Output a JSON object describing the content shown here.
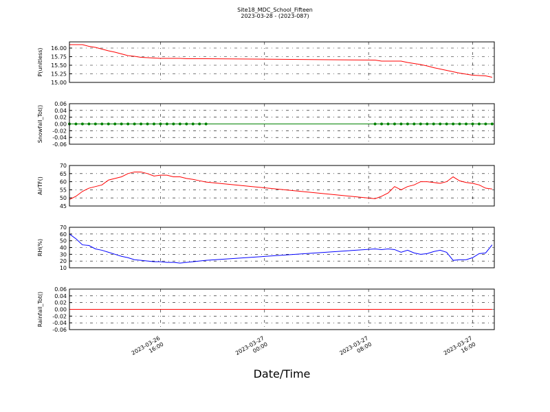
{
  "title": "Site18_MDC_School_Fifteen",
  "subtitle": "2023-03-28 - (2023-087)",
  "x_axis": {
    "label": "Date/Time",
    "lim": [
      "2023-03-26 09:00",
      "2023-03-27 17:40"
    ],
    "ticks": [
      {
        "value": "2023-03-26 16:00",
        "label": "2023-03-26\n16:00"
      },
      {
        "value": "2023-03-27 00:00",
        "label": "2023-03-27\n00:00"
      },
      {
        "value": "2023-03-27 08:00",
        "label": "2023-03-27\n08:00"
      },
      {
        "value": "2023-03-27 16:00",
        "label": "2023-03-27\n16:00"
      }
    ]
  },
  "chart_data": [
    {
      "type": "line",
      "y_label": "P(unitless)",
      "color": "#ff0000",
      "grid": true,
      "ylim": [
        15.0,
        16.18
      ],
      "yticks": [
        {
          "value": 15.0,
          "label": "15.00"
        },
        15.25,
        {
          "value": 15.5,
          "label": "15.50"
        },
        15.75,
        {
          "value": 16.0,
          "label": "16.00"
        }
      ],
      "x": [
        "2023-03-26 09:00",
        "2023-03-26 09:30",
        "2023-03-26 10:00",
        "2023-03-26 10:30",
        "2023-03-26 11:00",
        "2023-03-26 11:30",
        "2023-03-26 12:00",
        "2023-03-26 12:30",
        "2023-03-26 13:00",
        "2023-03-26 13:30",
        "2023-03-26 14:00",
        "2023-03-26 14:30",
        "2023-03-26 15:00",
        "2023-03-26 15:30",
        "2023-03-26 16:00",
        "2023-03-26 16:30",
        "2023-03-26 17:00",
        "2023-03-26 17:30",
        "2023-03-26 18:00",
        "2023-03-26 18:30",
        "2023-03-26 19:00",
        "2023-03-26 19:30",
        "2023-03-27 08:30",
        "2023-03-27 09:00",
        "2023-03-27 09:30",
        "2023-03-27 10:00",
        "2023-03-27 10:30",
        "2023-03-27 11:00",
        "2023-03-27 11:30",
        "2023-03-27 12:00",
        "2023-03-27 12:30",
        "2023-03-27 13:00",
        "2023-03-27 13:30",
        "2023-03-27 14:00",
        "2023-03-27 14:30",
        "2023-03-27 15:00",
        "2023-03-27 15:30",
        "2023-03-27 16:00",
        "2023-03-27 16:30",
        "2023-03-27 17:00",
        "2023-03-27 17:30"
      ],
      "values": [
        16.1,
        16.1,
        16.1,
        16.05,
        16.02,
        15.97,
        15.92,
        15.88,
        15.83,
        15.78,
        15.76,
        15.73,
        15.72,
        15.71,
        15.7,
        15.7,
        15.7,
        15.7,
        15.69,
        15.69,
        15.69,
        15.69,
        15.65,
        15.62,
        15.62,
        15.62,
        15.62,
        15.58,
        15.55,
        15.52,
        15.48,
        15.43,
        15.39,
        15.35,
        15.31,
        15.27,
        15.24,
        15.21,
        15.2,
        15.19,
        15.15
      ]
    },
    {
      "type": "line",
      "y_label": "Snowfall_Tot()",
      "color": "#008000",
      "markers": true,
      "grid": true,
      "ylim": [
        -0.06,
        0.06
      ],
      "yticks": [
        -0.06,
        -0.04,
        -0.02,
        {
          "value": 0,
          "label": "0.00"
        },
        0.02,
        0.04,
        0.06
      ],
      "x": [
        "2023-03-26 09:00",
        "2023-03-26 09:30",
        "2023-03-26 10:00",
        "2023-03-26 10:30",
        "2023-03-26 11:00",
        "2023-03-26 11:30",
        "2023-03-26 12:00",
        "2023-03-26 12:30",
        "2023-03-26 13:00",
        "2023-03-26 13:30",
        "2023-03-26 14:00",
        "2023-03-26 14:30",
        "2023-03-26 15:00",
        "2023-03-26 15:30",
        "2023-03-26 16:00",
        "2023-03-26 16:30",
        "2023-03-26 17:00",
        "2023-03-26 17:30",
        "2023-03-26 18:00",
        "2023-03-26 18:30",
        "2023-03-26 19:00",
        "2023-03-26 19:30",
        "2023-03-27 08:30",
        "2023-03-27 09:00",
        "2023-03-27 09:30",
        "2023-03-27 10:00",
        "2023-03-27 10:30",
        "2023-03-27 11:00",
        "2023-03-27 11:30",
        "2023-03-27 12:00",
        "2023-03-27 12:30",
        "2023-03-27 13:00",
        "2023-03-27 13:30",
        "2023-03-27 14:00",
        "2023-03-27 14:30",
        "2023-03-27 15:00",
        "2023-03-27 15:30",
        "2023-03-27 16:00",
        "2023-03-27 16:30",
        "2023-03-27 17:00",
        "2023-03-27 17:30"
      ],
      "values": [
        0,
        0,
        0,
        0,
        0,
        0,
        0,
        0,
        0,
        0,
        0,
        0,
        0,
        0,
        0,
        0,
        0,
        0,
        0,
        0,
        0,
        0,
        0,
        0,
        0,
        0,
        0,
        0,
        0,
        0,
        0,
        0,
        0,
        0,
        0,
        0,
        0,
        0,
        0,
        0,
        0
      ]
    },
    {
      "type": "line",
      "y_label": "AirTF()",
      "color": "#ff0000",
      "grid": true,
      "ylim": [
        45,
        70
      ],
      "yticks": [
        45,
        50,
        55,
        60,
        65,
        70
      ],
      "x": [
        "2023-03-26 09:00",
        "2023-03-26 09:30",
        "2023-03-26 10:00",
        "2023-03-26 10:30",
        "2023-03-26 11:00",
        "2023-03-26 11:30",
        "2023-03-26 12:00",
        "2023-03-26 12:30",
        "2023-03-26 13:00",
        "2023-03-26 13:30",
        "2023-03-26 14:00",
        "2023-03-26 14:30",
        "2023-03-26 15:00",
        "2023-03-26 15:30",
        "2023-03-26 16:00",
        "2023-03-26 16:30",
        "2023-03-26 17:00",
        "2023-03-26 17:30",
        "2023-03-26 18:00",
        "2023-03-26 18:30",
        "2023-03-26 19:00",
        "2023-03-26 19:30",
        "2023-03-27 08:30",
        "2023-03-27 09:00",
        "2023-03-27 09:30",
        "2023-03-27 10:00",
        "2023-03-27 10:30",
        "2023-03-27 11:00",
        "2023-03-27 11:30",
        "2023-03-27 12:00",
        "2023-03-27 12:30",
        "2023-03-27 13:00",
        "2023-03-27 13:30",
        "2023-03-27 14:00",
        "2023-03-27 14:30",
        "2023-03-27 15:00",
        "2023-03-27 15:30",
        "2023-03-27 16:00",
        "2023-03-27 16:30",
        "2023-03-27 17:00",
        "2023-03-27 17:30"
      ],
      "values": [
        49,
        51,
        54,
        56,
        57,
        58,
        61,
        62,
        63,
        65,
        66,
        66,
        65,
        63.5,
        64,
        64,
        63,
        63,
        62,
        61.4,
        60.6,
        59.8,
        49.5,
        51,
        53,
        57,
        55,
        57,
        58,
        60,
        60,
        59.5,
        59,
        60,
        63,
        60.5,
        59.5,
        59,
        58,
        56,
        55.5
      ]
    },
    {
      "type": "line",
      "y_label": "RH(%)",
      "color": "#0000ff",
      "grid": true,
      "ylim": [
        10,
        70
      ],
      "yticks": [
        10,
        20,
        30,
        40,
        50,
        60,
        70
      ],
      "x": [
        "2023-03-26 09:00",
        "2023-03-26 09:30",
        "2023-03-26 10:00",
        "2023-03-26 10:30",
        "2023-03-26 11:00",
        "2023-03-26 11:30",
        "2023-03-26 12:00",
        "2023-03-26 12:30",
        "2023-03-26 13:00",
        "2023-03-26 13:30",
        "2023-03-26 14:00",
        "2023-03-26 14:30",
        "2023-03-26 15:00",
        "2023-03-26 15:30",
        "2023-03-26 16:00",
        "2023-03-26 16:30",
        "2023-03-26 17:00",
        "2023-03-26 17:30",
        "2023-03-26 18:00",
        "2023-03-26 18:30",
        "2023-03-26 19:00",
        "2023-03-26 19:30",
        "2023-03-27 08:30",
        "2023-03-27 09:00",
        "2023-03-27 09:30",
        "2023-03-27 10:00",
        "2023-03-27 10:30",
        "2023-03-27 11:00",
        "2023-03-27 11:30",
        "2023-03-27 12:00",
        "2023-03-27 12:30",
        "2023-03-27 13:00",
        "2023-03-27 13:30",
        "2023-03-27 14:00",
        "2023-03-27 14:30",
        "2023-03-27 15:00",
        "2023-03-27 15:30",
        "2023-03-27 16:00",
        "2023-03-27 16:30",
        "2023-03-27 17:00",
        "2023-03-27 17:30"
      ],
      "values": [
        60,
        53,
        44,
        43,
        38,
        36,
        33,
        30,
        27,
        25,
        22,
        21,
        20,
        19,
        19,
        18,
        18,
        17,
        18,
        19,
        20,
        21,
        38,
        37,
        38,
        37,
        33,
        36,
        32,
        30,
        31,
        34,
        36,
        33,
        21,
        22,
        22,
        25,
        31,
        32,
        44
      ]
    },
    {
      "type": "line",
      "y_label": "Rainfall_Tot()",
      "color": "#ff0000",
      "grid": true,
      "ylim": [
        -0.06,
        0.06
      ],
      "yticks": [
        -0.06,
        -0.04,
        -0.02,
        {
          "value": 0,
          "label": "0.00"
        },
        0.02,
        0.04,
        0.06
      ],
      "x": [
        "2023-03-26 09:00",
        "2023-03-26 09:30",
        "2023-03-26 10:00",
        "2023-03-26 10:30",
        "2023-03-26 11:00",
        "2023-03-26 11:30",
        "2023-03-26 12:00",
        "2023-03-26 12:30",
        "2023-03-26 13:00",
        "2023-03-26 13:30",
        "2023-03-26 14:00",
        "2023-03-26 14:30",
        "2023-03-26 15:00",
        "2023-03-26 15:30",
        "2023-03-26 16:00",
        "2023-03-26 16:30",
        "2023-03-26 17:00",
        "2023-03-26 17:30",
        "2023-03-26 18:00",
        "2023-03-26 18:30",
        "2023-03-26 19:00",
        "2023-03-26 19:30",
        "2023-03-27 08:30",
        "2023-03-27 09:00",
        "2023-03-27 09:30",
        "2023-03-27 10:00",
        "2023-03-27 10:30",
        "2023-03-27 11:00",
        "2023-03-27 11:30",
        "2023-03-27 12:00",
        "2023-03-27 12:30",
        "2023-03-27 13:00",
        "2023-03-27 13:30",
        "2023-03-27 14:00",
        "2023-03-27 14:30",
        "2023-03-27 15:00",
        "2023-03-27 15:30",
        "2023-03-27 16:00",
        "2023-03-27 16:30",
        "2023-03-27 17:00",
        "2023-03-27 17:30"
      ],
      "values": [
        0,
        0,
        0,
        0,
        0,
        0,
        0,
        0,
        0,
        0,
        0,
        0,
        0,
        0,
        0,
        0,
        0,
        0,
        0,
        0,
        0,
        0,
        0,
        0,
        0,
        0,
        0,
        0,
        0,
        0,
        0,
        0,
        0,
        0,
        0,
        0,
        0,
        0,
        0,
        0,
        0
      ]
    }
  ]
}
